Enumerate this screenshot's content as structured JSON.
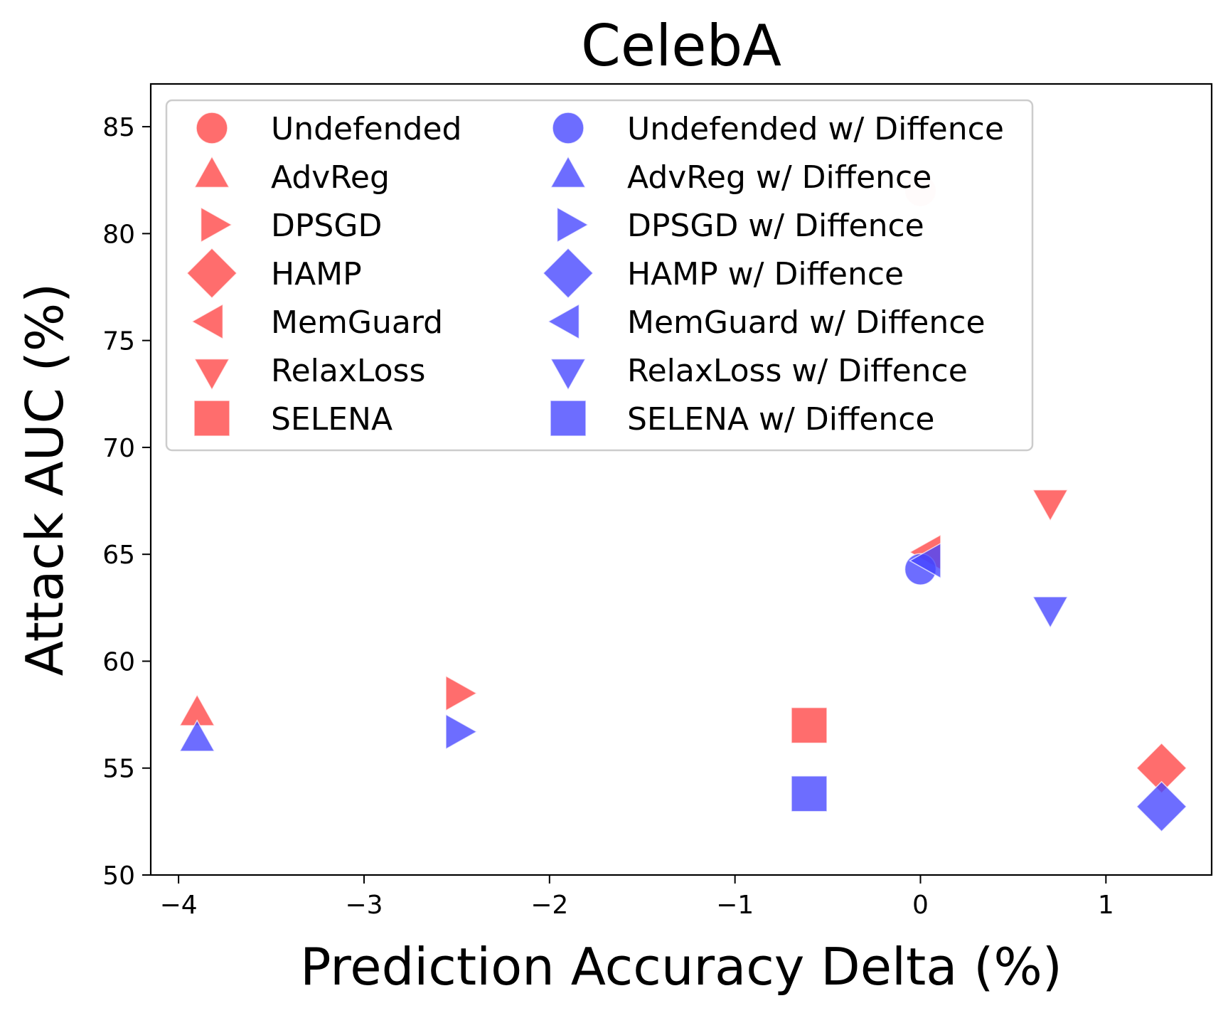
{
  "chart_data": {
    "type": "scatter",
    "title": "CelebA",
    "xlabel": "Prediction Accuracy Delta (%)",
    "ylabel": "Attack AUC (%)",
    "xlim": [
      -4.15,
      1.57
    ],
    "ylim": [
      50,
      87
    ],
    "xticks": [
      -4,
      -3,
      -2,
      -1,
      0,
      1
    ],
    "xtick_labels": [
      "−4",
      "−3",
      "−2",
      "−1",
      "0",
      "1"
    ],
    "yticks": [
      50,
      55,
      60,
      65,
      70,
      75,
      80,
      85
    ],
    "ytick_labels": [
      "50",
      "55",
      "60",
      "65",
      "70",
      "75",
      "80",
      "85"
    ],
    "grid": false,
    "legend": {
      "placement": "top-left",
      "columns": 2
    },
    "colors": {
      "undefended_series": "#ff4444",
      "with_diffence_series": "#4444ff"
    },
    "series": [
      {
        "name": "Undefended",
        "marker": "circle",
        "color": "#ff4444",
        "alpha": 0.15,
        "points": [
          {
            "x": 0.0,
            "y": 82.0
          }
        ]
      },
      {
        "name": "AdvReg",
        "marker": "triangle-up",
        "color": "#ff4444",
        "points": [
          {
            "x": -3.9,
            "y": 57.5
          }
        ]
      },
      {
        "name": "DPSGD",
        "marker": "triangle-right",
        "color": "#ff4444",
        "points": [
          {
            "x": -2.5,
            "y": 58.5
          }
        ]
      },
      {
        "name": "HAMP",
        "marker": "diamond",
        "color": "#ff4444",
        "points": [
          {
            "x": 1.3,
            "y": 55.0
          }
        ]
      },
      {
        "name": "MemGuard",
        "marker": "triangle-left",
        "color": "#ff4444",
        "points": [
          {
            "x": 0.05,
            "y": 65.1
          }
        ]
      },
      {
        "name": "RelaxLoss",
        "marker": "triangle-down",
        "color": "#ff4444",
        "points": [
          {
            "x": 0.7,
            "y": 67.5
          }
        ]
      },
      {
        "name": "SELENA",
        "marker": "square",
        "color": "#ff4444",
        "points": [
          {
            "x": -0.6,
            "y": 57.0
          }
        ]
      },
      {
        "name": "Undefended w/ Diffence",
        "marker": "circle",
        "color": "#4444ff",
        "points": [
          {
            "x": 0.0,
            "y": 64.3
          }
        ]
      },
      {
        "name": "AdvReg w/ Diffence",
        "marker": "triangle-up",
        "color": "#4444ff",
        "points": [
          {
            "x": -3.9,
            "y": 56.3
          }
        ]
      },
      {
        "name": "DPSGD w/ Diffence",
        "marker": "triangle-right",
        "color": "#4444ff",
        "points": [
          {
            "x": -2.5,
            "y": 56.7
          }
        ]
      },
      {
        "name": "HAMP w/ Diffence",
        "marker": "diamond",
        "color": "#4444ff",
        "points": [
          {
            "x": 1.3,
            "y": 53.2
          }
        ]
      },
      {
        "name": "MemGuard w/ Diffence",
        "marker": "triangle-left",
        "color": "#4444ff",
        "points": [
          {
            "x": 0.05,
            "y": 64.7
          }
        ]
      },
      {
        "name": "RelaxLoss w/ Diffence",
        "marker": "triangle-down",
        "color": "#4444ff",
        "points": [
          {
            "x": 0.7,
            "y": 62.5
          }
        ]
      },
      {
        "name": "SELENA w/ Diffence",
        "marker": "square",
        "color": "#4444ff",
        "points": [
          {
            "x": -0.6,
            "y": 53.8
          }
        ]
      }
    ]
  }
}
